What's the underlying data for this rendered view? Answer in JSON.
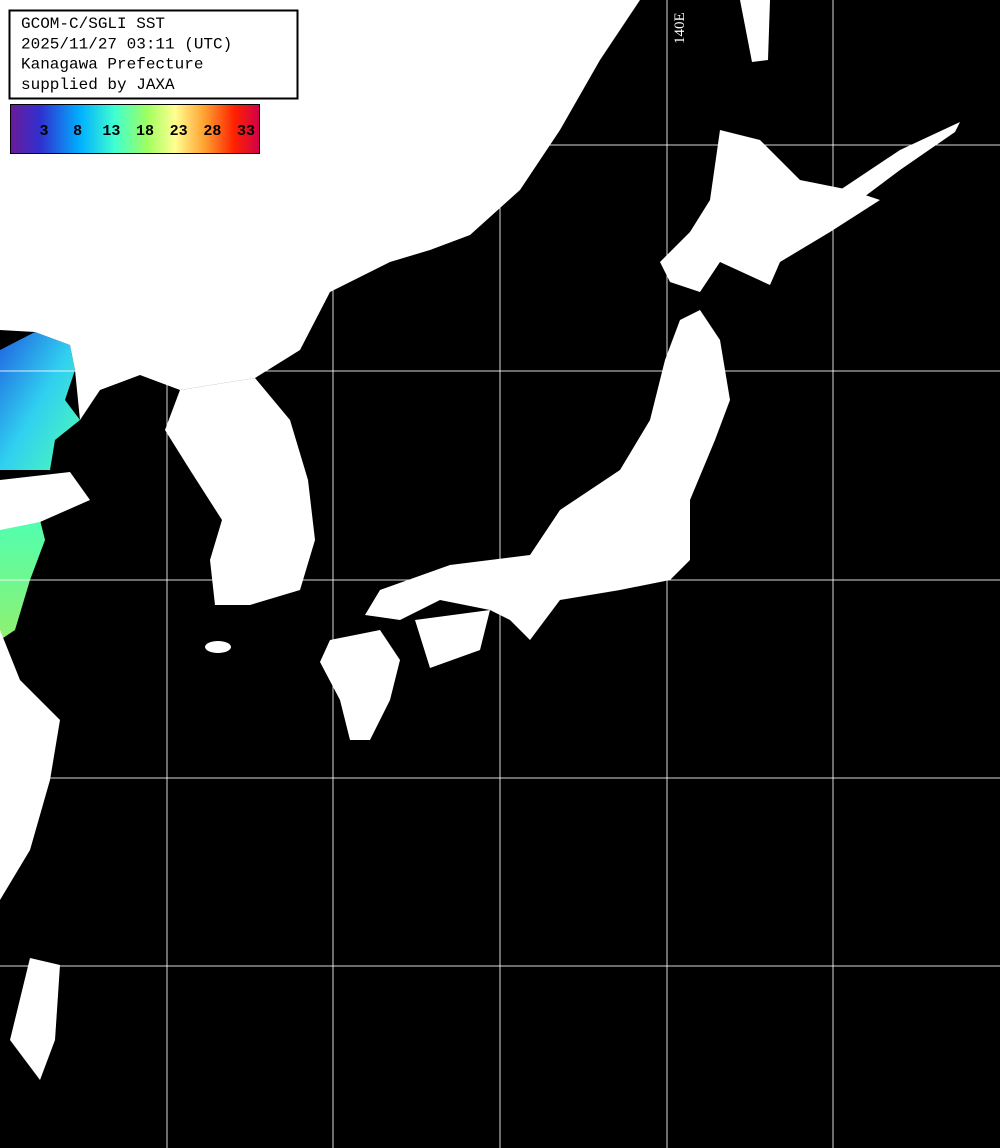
{
  "header": {
    "lines": [
      "GCOM-C/SGLI SST",
      "2025/11/27 03:11 (UTC)",
      "Kanagawa Prefecture",
      "supplied by JAXA"
    ]
  },
  "colorbar": {
    "ticks": [
      3,
      8,
      13,
      18,
      23,
      28,
      33
    ]
  },
  "grid": {
    "lon_label": "140E"
  }
}
